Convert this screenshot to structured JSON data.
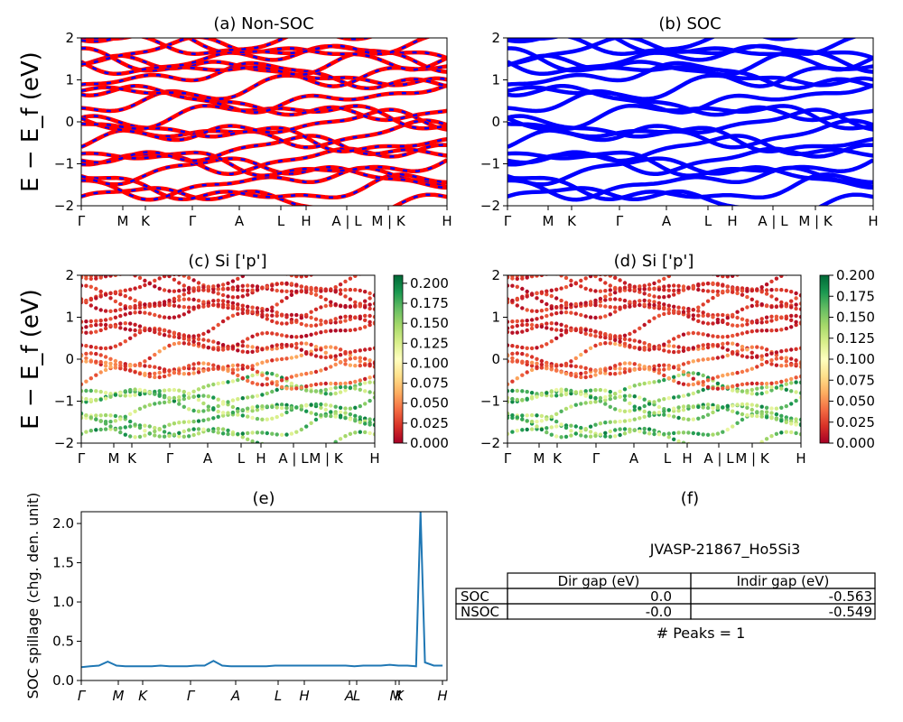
{
  "chart_data": [
    {
      "id": "a",
      "type": "line",
      "title": "(a) Non-SOC",
      "ylabel": "E − E_f (eV)",
      "ylim": [
        -2,
        2
      ],
      "yticks": [
        "2",
        "1",
        "0",
        "−1",
        "−2"
      ],
      "xticks": [
        "Γ",
        "M",
        "K",
        "Γ",
        "A",
        "L",
        "H",
        "A | L",
        "M | K",
        "H"
      ],
      "series": [
        {
          "values": [
            0.0,
            0.52,
            0.59,
            0.61,
            0.59,
            0.54,
            0.46,
            0.4,
            0.38,
            0.36,
            0.32,
            0.28,
            0.26,
            0.29,
            0.34,
            0.43,
            0.5,
            0.57,
            0.6,
            0.58,
            0.51,
            0.41,
            0.39,
            0.3,
            0.26,
            0.4,
            0.55,
            0.66,
            0.74,
            0.79,
            0.82,
            0.85,
            0.93,
            1.04,
            1.17,
            1.27,
            1.32,
            1.29,
            1.24,
            1.17,
            1.07,
            0.94,
            0.88,
            1.01,
            1.06,
            1.01,
            0.97,
            0.94,
            0.97,
            0.96
          ]
        }
      ],
      "colors": {
        "nonsoc": "#ff0000",
        "soc": "#0000ff"
      }
    },
    {
      "id": "b",
      "type": "line",
      "title": "(b) SOC",
      "ylim": [
        -2,
        2
      ],
      "yticks": [
        "2",
        "1",
        "0",
        "−1",
        "−2"
      ],
      "xticks": [
        "Γ",
        "M",
        "K",
        "Γ",
        "A",
        "L",
        "H",
        "A | L",
        "M | K",
        "H"
      ],
      "colors": {
        "soc": "#0000ff"
      }
    },
    {
      "id": "c",
      "type": "scatter",
      "title": "(c)  Si ['p']",
      "ylabel": "E − E_f (eV)",
      "ylim": [
        -2,
        2
      ],
      "yticks": [
        "2",
        "1",
        "0",
        "−1",
        "−2"
      ],
      "xticks": [
        "Γ",
        "M",
        "K",
        "Γ",
        "A",
        "L",
        "H",
        "A | L",
        "M | K",
        "H"
      ],
      "colorbar": {
        "range": [
          0,
          0.21
        ],
        "ticks": [
          "0.200",
          "0.175",
          "0.150",
          "0.125",
          "0.100",
          "0.075",
          "0.050",
          "0.025",
          "0.000"
        ],
        "colormap": "RdYlGn"
      }
    },
    {
      "id": "d",
      "type": "scatter",
      "title": "(d) Si ['p']",
      "ylim": [
        -2,
        2
      ],
      "yticks": [
        "2",
        "1",
        "0",
        "−1",
        "−2"
      ],
      "xticks": [
        "Γ",
        "M",
        "K",
        "Γ",
        "A",
        "L",
        "H",
        "A | L",
        "M | K",
        "H"
      ],
      "colorbar": {
        "range": [
          0,
          0.2
        ],
        "ticks": [
          "0.200",
          "0.175",
          "0.150",
          "0.125",
          "0.100",
          "0.075",
          "0.050",
          "0.025",
          "0.000"
        ],
        "colormap": "RdYlGn"
      }
    },
    {
      "id": "e",
      "type": "line",
      "title": "(e)",
      "ylabel": "SOC spillage (chg. den. unit)",
      "ylim": [
        0,
        2.15
      ],
      "yticks": [
        "2.0",
        "1.5",
        "1.0",
        "0.5",
        "0.0"
      ],
      "xticks": [
        "Γ",
        "M",
        "K",
        "Γ",
        "A",
        "L",
        "H",
        "A",
        "L",
        "M",
        "K",
        "H"
      ],
      "x": [
        0,
        2,
        4,
        6,
        8,
        10,
        12,
        14,
        16,
        18,
        20,
        22,
        24,
        26,
        28,
        30,
        32,
        34,
        36,
        38,
        40,
        42,
        44,
        46,
        48,
        50,
        52,
        54,
        56,
        58,
        60,
        62,
        64,
        66,
        68,
        70,
        72,
        74,
        76,
        77,
        78,
        80,
        82
      ],
      "values": [
        0.17,
        0.18,
        0.19,
        0.24,
        0.19,
        0.18,
        0.18,
        0.18,
        0.18,
        0.19,
        0.18,
        0.18,
        0.18,
        0.19,
        0.19,
        0.25,
        0.19,
        0.18,
        0.18,
        0.18,
        0.18,
        0.18,
        0.19,
        0.19,
        0.19,
        0.19,
        0.19,
        0.19,
        0.19,
        0.19,
        0.19,
        0.18,
        0.19,
        0.19,
        0.19,
        0.2,
        0.19,
        0.19,
        0.18,
        2.15,
        0.23,
        0.19,
        0.19
      ],
      "color": "#1f77b4"
    }
  ],
  "panel_f": {
    "title": "(f)",
    "material": "JVASP-21867_Ho5Si3",
    "table": {
      "columns": [
        "Dir gap (eV)",
        "Indir gap (eV)"
      ],
      "rows": [
        {
          "label": "SOC",
          "dir": "0.0",
          "indir": "-0.563"
        },
        {
          "label": "NSOC",
          "dir": "-0.0",
          "indir": "-0.549"
        }
      ]
    },
    "peaks": "# Peaks = 1"
  }
}
